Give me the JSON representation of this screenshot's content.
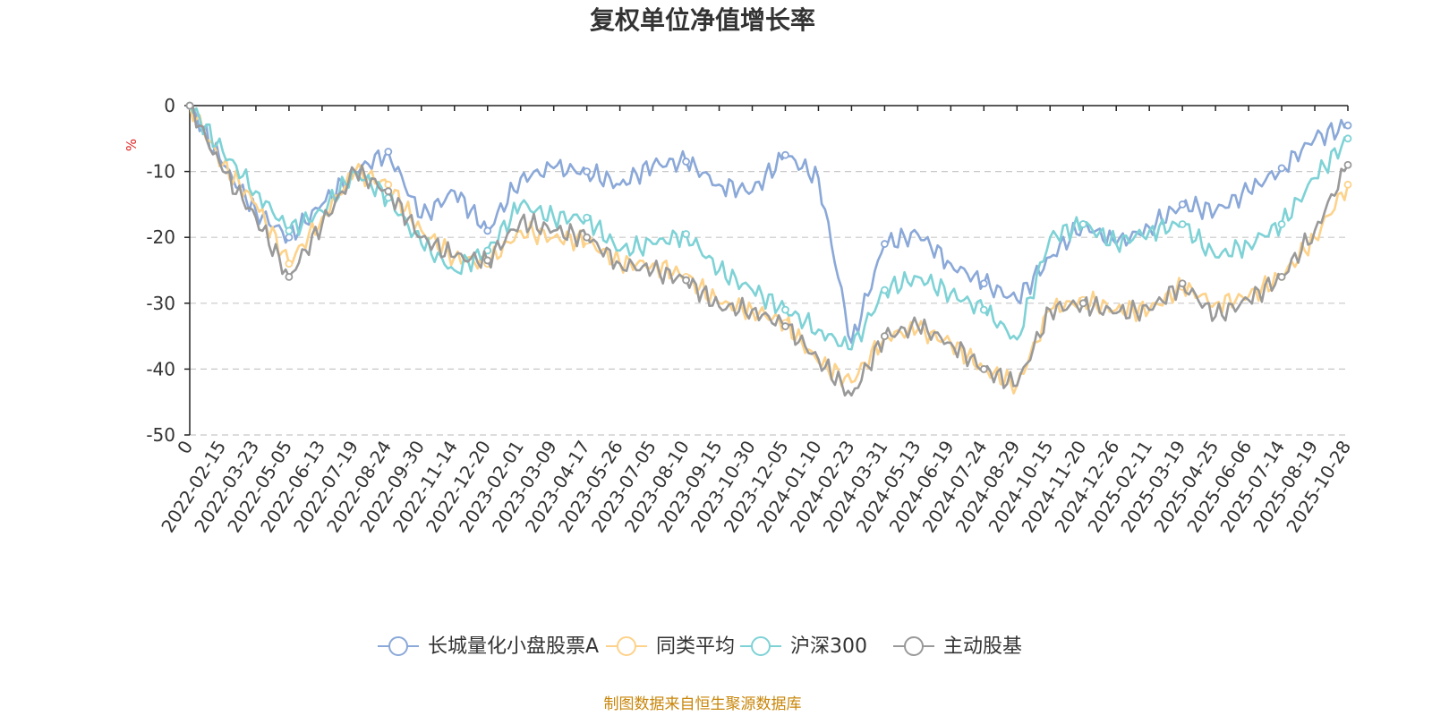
{
  "chart_data": {
    "type": "line",
    "title": "复权单位净值增长率",
    "ylabel": "%",
    "ylim": [
      -50,
      0
    ],
    "yticks": [
      0,
      -10,
      -20,
      -30,
      -40,
      -50
    ],
    "ytick_labels": [
      "0",
      "-10",
      "-20",
      "-30",
      "-40",
      "-50"
    ],
    "x_labels": [
      "0",
      "2022-02-15",
      "2022-03-23",
      "2022-05-05",
      "2022-06-13",
      "2022-07-19",
      "2022-08-24",
      "2022-09-30",
      "2022-11-14",
      "2022-12-20",
      "2023-02-01",
      "2023-03-09",
      "2023-04-17",
      "2023-05-26",
      "2023-07-05",
      "2023-08-10",
      "2023-09-15",
      "2023-10-30",
      "2023-12-05",
      "2024-01-10",
      "2024-02-23",
      "2024-03-31",
      "2024-05-13",
      "2024-06-19",
      "2024-07-24",
      "2024-08-29",
      "2024-10-15",
      "2024-11-20",
      "2024-12-26",
      "2025-02-11",
      "2025-03-19",
      "2025-04-25",
      "2025-06-06",
      "2025-07-14",
      "2025-08-19",
      "2025-10-28"
    ],
    "x": [
      0,
      1,
      2,
      3,
      4,
      5,
      6,
      7,
      8,
      9,
      10,
      11,
      12,
      13,
      14,
      15,
      16,
      17,
      18,
      19,
      20,
      21,
      22,
      23,
      24,
      25,
      26,
      27,
      28,
      29,
      30,
      31,
      32,
      33,
      34,
      35
    ],
    "series": [
      {
        "name": "长城量化小盘股票A",
        "color": "#8aa8d8",
        "values": [
          0,
          -9,
          -16,
          -20,
          -15,
          -10,
          -7,
          -17,
          -13,
          -19,
          -11,
          -9.5,
          -10,
          -12,
          -9,
          -8.5,
          -12,
          -13,
          -7.5,
          -11,
          -36,
          -21,
          -19.5,
          -24,
          -27,
          -29.5,
          -23,
          -18,
          -21,
          -18.5,
          -15,
          -16,
          -13,
          -9.5,
          -5,
          -3
        ]
      },
      {
        "name": "同类平均",
        "color": "#fdd28a",
        "values": [
          0,
          -9,
          -15,
          -24,
          -17,
          -10,
          -12,
          -19,
          -23,
          -24,
          -19,
          -20,
          -20.5,
          -24,
          -24,
          -26,
          -30,
          -31,
          -33,
          -39,
          -42,
          -35,
          -34,
          -36,
          -40,
          -42.5,
          -31,
          -29.5,
          -31,
          -31,
          -27.5,
          -30,
          -29,
          -26,
          -20,
          -12
        ]
      },
      {
        "name": "沪深300",
        "color": "#7ed2d6",
        "values": [
          0,
          -7,
          -13,
          -19,
          -16,
          -10,
          -14,
          -21,
          -25,
          -22,
          -15,
          -17,
          -17,
          -22,
          -21,
          -19.5,
          -25,
          -28,
          -31,
          -34,
          -37,
          -28,
          -26,
          -28.5,
          -31,
          -35.5,
          -20,
          -18,
          -21,
          -19,
          -18,
          -23,
          -21,
          -18,
          -11,
          -5
        ]
      },
      {
        "name": "主动股基",
        "color": "#999999",
        "values": [
          0,
          -10,
          -17,
          -26,
          -18,
          -10,
          -13,
          -20,
          -23,
          -23.5,
          -17.5,
          -19,
          -20,
          -24,
          -25,
          -26.5,
          -30.5,
          -31,
          -33.5,
          -38.5,
          -44,
          -35,
          -33.5,
          -36,
          -40,
          -42.5,
          -31,
          -30,
          -31.5,
          -31,
          -27,
          -32,
          -29.5,
          -26,
          -19,
          -9
        ]
      }
    ],
    "legend_position": "bottom-center"
  },
  "footer": {
    "source": "制图数据来自恒生聚源数据库"
  }
}
